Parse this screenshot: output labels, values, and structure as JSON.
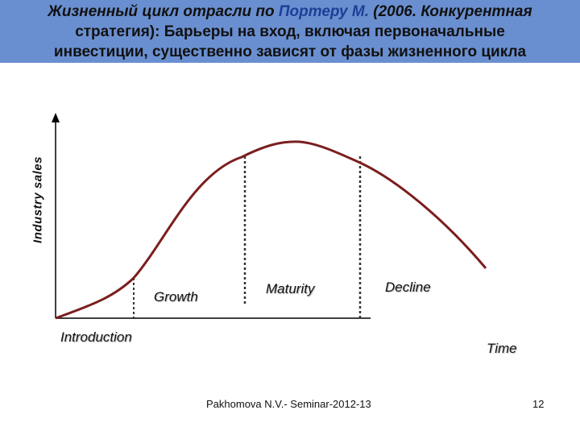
{
  "title": {
    "line1_a": "Жизненный цикл отрасли  по ",
    "line1_b": "Портеру М.",
    "line1_c": " (2006. Конкурентная",
    "line2": "стратегия): Барьеры на вход, включая  первоначальные",
    "line3": "инвестиции, существенно зависят  от фазы жизненного цикла"
  },
  "diagram": {
    "y_axis_label": "Industry sales",
    "x_axis_label": "Time",
    "stages": [
      "Introduction",
      "Growth",
      "Maturity",
      "Decline"
    ]
  },
  "footer": {
    "author": "Pakhomova N.V.- Seminar-2012-13",
    "page_number": "12"
  },
  "colors": {
    "title_band": "#6a8fd0",
    "title_highlight": "#1f3e96",
    "curve": "#7b1e1e",
    "axes": "#000000"
  }
}
